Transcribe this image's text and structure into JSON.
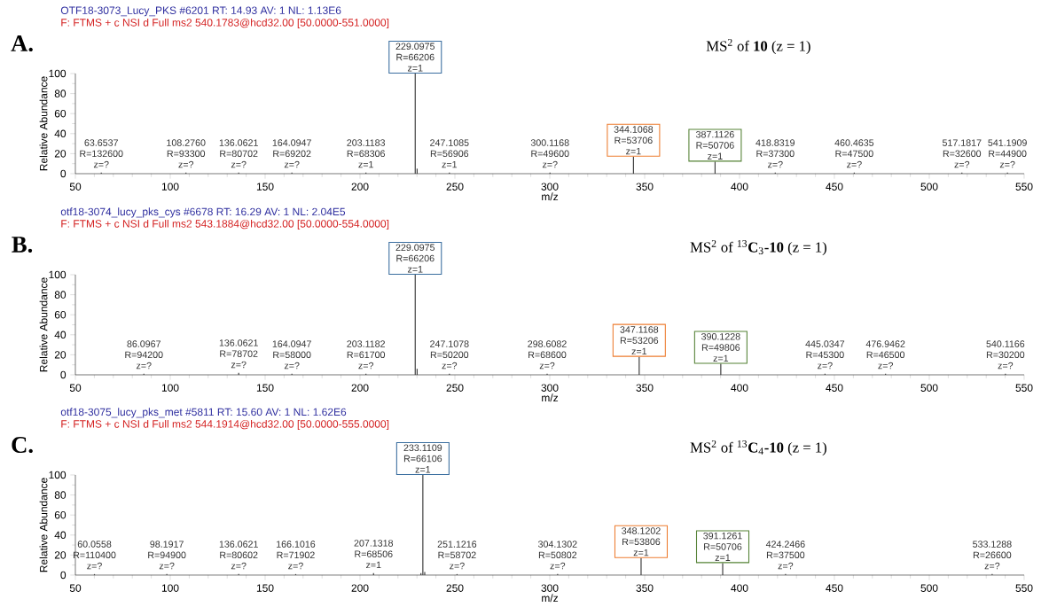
{
  "chart_data": [
    {
      "type": "bar",
      "title": "MS$^{2}$ of **10** (z = 1)",
      "xlabel": "m/z",
      "ylabel": "Relative Abundance",
      "color": "#404040",
      "xlim": [
        50,
        550
      ],
      "ylim": [
        0,
        100
      ],
      "xticks": [
        50,
        100,
        150,
        200,
        250,
        300,
        350,
        400,
        450,
        500,
        550
      ],
      "yticks": [
        0,
        20,
        40,
        60,
        80,
        100
      ],
      "x": [
        63.6537,
        108.276,
        136.0621,
        164.0947,
        203.1183,
        229.0975,
        230.1,
        247.1085,
        300.1168,
        344.1068,
        387.1126,
        418.8319,
        460.4635,
        517.1817,
        541.1909
      ],
      "values": [
        1,
        1,
        1,
        1,
        1,
        100,
        5,
        1,
        1,
        17,
        12,
        1,
        1,
        1,
        1
      ],
      "annotations": [
        "OTF18-3073_Lucy_PKS #6201   RT: 14.93   AV: 1   NL: 1.13E6",
        "F: FTMS + c NSI d Full ms2 540.1783@hcd32.00 [50.0000-551.0000]",
        "A.",
        {
          "text": "63.6537 R=132600 z=?",
          "x": 63.6537,
          "y": 1
        },
        {
          "text": "108.2760 R=93300 z=?",
          "x": 108.276,
          "y": 1
        },
        {
          "text": "136.0621 R=80702 z=?",
          "x": 136.0621,
          "y": 1
        },
        {
          "text": "164.0947 R=69202 z=?",
          "x": 164.0947,
          "y": 1
        },
        {
          "text": "203.1183 R=68306 z=1",
          "x": 203.1183,
          "y": 1
        },
        {
          "text": "229.0975 R=66206 z=1",
          "x": 229.0975,
          "y": 100
        },
        {
          "text": "247.1085 R=56906 z=1",
          "x": 247.1085,
          "y": 1
        },
        {
          "text": "300.1168 R=49600 z=?",
          "x": 300.1168,
          "y": 1
        },
        {
          "text": "344.1068 R=53706 z=1",
          "x": 344.1068,
          "y": 17
        },
        {
          "text": "387.1126 R=50706 z=1",
          "x": 387.1126,
          "y": 12
        },
        {
          "text": "418.8319 R=37300 z=?",
          "x": 418.8319,
          "y": 1
        },
        {
          "text": "460.4635 R=47500 z=?",
          "x": 460.4635,
          "y": 1
        },
        {
          "text": "517.1817 R=32600 z=?",
          "x": 517.1817,
          "y": 1
        },
        {
          "text": "541.1909 R=44900 z=?",
          "x": 541.1909,
          "y": 1
        }
      ]
    },
    {
      "type": "bar",
      "title": "MS$^{2}$ of $^{13}$**C**$_{3}$**-10** (z = 1)",
      "xlabel": "m/z",
      "ylabel": "Relative Abundance",
      "color": "#404040",
      "xlim": [
        50,
        550
      ],
      "ylim": [
        0,
        100
      ],
      "xticks": [
        50,
        100,
        150,
        200,
        250,
        300,
        350,
        400,
        450,
        500,
        550
      ],
      "yticks": [
        0,
        20,
        40,
        60,
        80,
        100
      ],
      "x": [
        86.0967,
        136.0621,
        164.0947,
        203.1182,
        229.0975,
        230.1,
        247.1078,
        298.6082,
        347.1168,
        390.1228,
        445.0347,
        476.9462,
        540.1166
      ],
      "values": [
        1,
        2,
        1,
        1,
        100,
        6,
        1,
        1,
        18,
        11,
        1,
        1,
        1
      ],
      "annotations": [
        "otf18-3074_lucy_pks_cys #6678   RT: 16.29   AV: 1   NL: 2.04E5",
        "F: FTMS + c NSI d Full ms2 543.1884@hcd32.00 [50.0000-554.0000]",
        "B.",
        {
          "text": "86.0967 R=94200 z=?",
          "x": 86.0967,
          "y": 1
        },
        {
          "text": "136.0621 R=78702 z=?",
          "x": 136.0621,
          "y": 2
        },
        {
          "text": "164.0947 R=58000 z=?",
          "x": 164.0947,
          "y": 1
        },
        {
          "text": "203.1182 R=61700 z=?",
          "x": 203.1182,
          "y": 1
        },
        {
          "text": "229.0975 R=66206 z=1",
          "x": 229.0975,
          "y": 100
        },
        {
          "text": "247.1078 R=50200 z=?",
          "x": 247.1078,
          "y": 1
        },
        {
          "text": "298.6082 R=68600 z=?",
          "x": 298.6082,
          "y": 1
        },
        {
          "text": "347.1168 R=53206 z=1",
          "x": 347.1168,
          "y": 18
        },
        {
          "text": "390.1228 R=49806 z=1",
          "x": 390.1228,
          "y": 11
        },
        {
          "text": "445.0347 R=45300 z=?",
          "x": 445.0347,
          "y": 1
        },
        {
          "text": "476.9462 R=46500 z=?",
          "x": 476.9462,
          "y": 1
        },
        {
          "text": "540.1166 R=30200 z=?",
          "x": 540.1166,
          "y": 1
        }
      ]
    },
    {
      "type": "bar",
      "title": "MS$^{2}$ of $^{13}$**C**$_{4}$**-10** (z = 1)",
      "xlabel": "m/z",
      "ylabel": "Relative Abundance",
      "color": "#404040",
      "xlim": [
        50,
        550
      ],
      "ylim": [
        0,
        100
      ],
      "xticks": [
        50,
        100,
        150,
        200,
        250,
        300,
        350,
        400,
        450,
        500,
        550
      ],
      "yticks": [
        0,
        20,
        40,
        60,
        80,
        100
      ],
      "x": [
        60.0558,
        98.1917,
        136.0621,
        166.1016,
        207.1318,
        232.1,
        233.1109,
        234.1,
        251.1216,
        304.1302,
        348.1202,
        391.1261,
        424.2466,
        533.1288
      ],
      "values": [
        1,
        1,
        1,
        1,
        2,
        2,
        100,
        3,
        1,
        1,
        17,
        12,
        1,
        1
      ],
      "annotations": [
        "otf18-3075_lucy_pks_met #5811   RT: 15.60   AV: 1   NL: 1.62E6",
        "F: FTMS + c NSI d Full ms2 544.1914@hcd32.00 [50.0000-555.0000]",
        "C.",
        {
          "text": "60.0558 R=110400 z=?",
          "x": 60.0558,
          "y": 1
        },
        {
          "text": "98.1917 R=94900 z=?",
          "x": 98.1917,
          "y": 1
        },
        {
          "text": "136.0621 R=80602 z=?",
          "x": 136.0621,
          "y": 1
        },
        {
          "text": "166.1016 R=71902 z=?",
          "x": 166.1016,
          "y": 1
        },
        {
          "text": "207.1318 R=68506 z=1",
          "x": 207.1318,
          "y": 2
        },
        {
          "text": "233.1109 R=66106 z=1",
          "x": 233.1109,
          "y": 100
        },
        {
          "text": "251.1216 R=58702 z=?",
          "x": 251.1216,
          "y": 1
        },
        {
          "text": "304.1302 R=50802 z=?",
          "x": 304.1302,
          "y": 1
        },
        {
          "text": "348.1202 R=53806 z=1",
          "x": 348.1202,
          "y": 17
        },
        {
          "text": "391.1261 R=50706 z=1",
          "x": 391.1261,
          "y": 12
        },
        {
          "text": "424.2466 R=37500 z=?",
          "x": 424.2466,
          "y": 1
        },
        {
          "text": "533.1288 R=26600 z=?",
          "x": 533.1288,
          "y": 1
        }
      ]
    }
  ]
}
